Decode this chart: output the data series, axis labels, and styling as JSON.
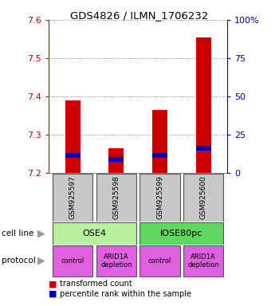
{
  "title": "GDS4826 / ILMN_1706232",
  "samples": [
    "GSM925597",
    "GSM925598",
    "GSM925599",
    "GSM925600"
  ],
  "bar_bottoms": [
    7.2,
    7.2,
    7.2,
    7.2
  ],
  "bar_tops": [
    7.39,
    7.265,
    7.365,
    7.555
  ],
  "blue_marks": [
    7.245,
    7.235,
    7.245,
    7.265
  ],
  "ylim": [
    7.2,
    7.6
  ],
  "yticks_left": [
    7.2,
    7.3,
    7.4,
    7.5,
    7.6
  ],
  "yticks_right": [
    0,
    25,
    50,
    75,
    100
  ],
  "ytick_labels_right": [
    "0",
    "25",
    "50",
    "75",
    "100%"
  ],
  "cell_line_labels": [
    "OSE4",
    "IOSE80pc"
  ],
  "cell_line_spans": [
    [
      0,
      1
    ],
    [
      2,
      3
    ]
  ],
  "cell_line_colors": [
    "#b8f0a0",
    "#60d860"
  ],
  "protocol_labels": [
    "control",
    "ARID1A\ndepletion",
    "control",
    "ARID1A\ndepletion"
  ],
  "protocol_color": "#e060e0",
  "bar_color": "#cc0000",
  "blue_color": "#0000bb",
  "legend_red": "transformed count",
  "legend_blue": "percentile rank within the sample",
  "cell_line_label": "cell line",
  "protocol_label": "protocol",
  "grid_color": "#666666",
  "bg_color": "#ffffff",
  "axis_color_left": "#cc0000",
  "axis_color_right": "#0000bb",
  "sample_bg_color": "#c8c8c8",
  "arrow_color": "#999999"
}
